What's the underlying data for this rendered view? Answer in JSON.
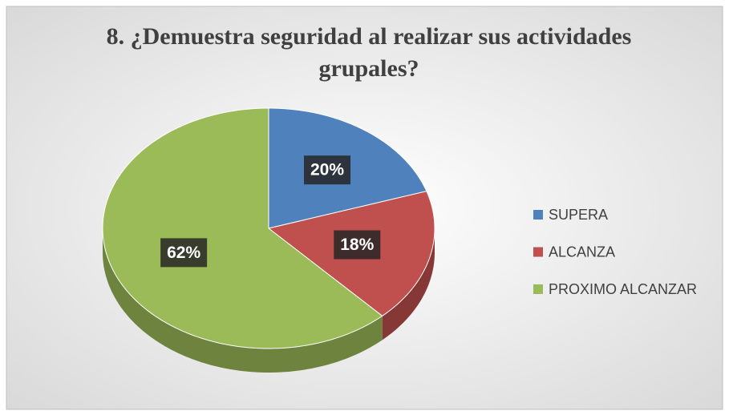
{
  "chart_data": {
    "type": "pie",
    "title": "8. ¿Demuestra seguridad al realizar sus actividades grupales?",
    "categories": [
      "SUPERA",
      "ALCANZA",
      "PROXIMO ALCANZAR"
    ],
    "values": [
      20,
      18,
      62
    ],
    "value_labels": [
      "20%",
      "18%",
      "62%"
    ],
    "colors": [
      "#4f81bd",
      "#c0504d",
      "#9bbb59"
    ],
    "legend": "right"
  }
}
